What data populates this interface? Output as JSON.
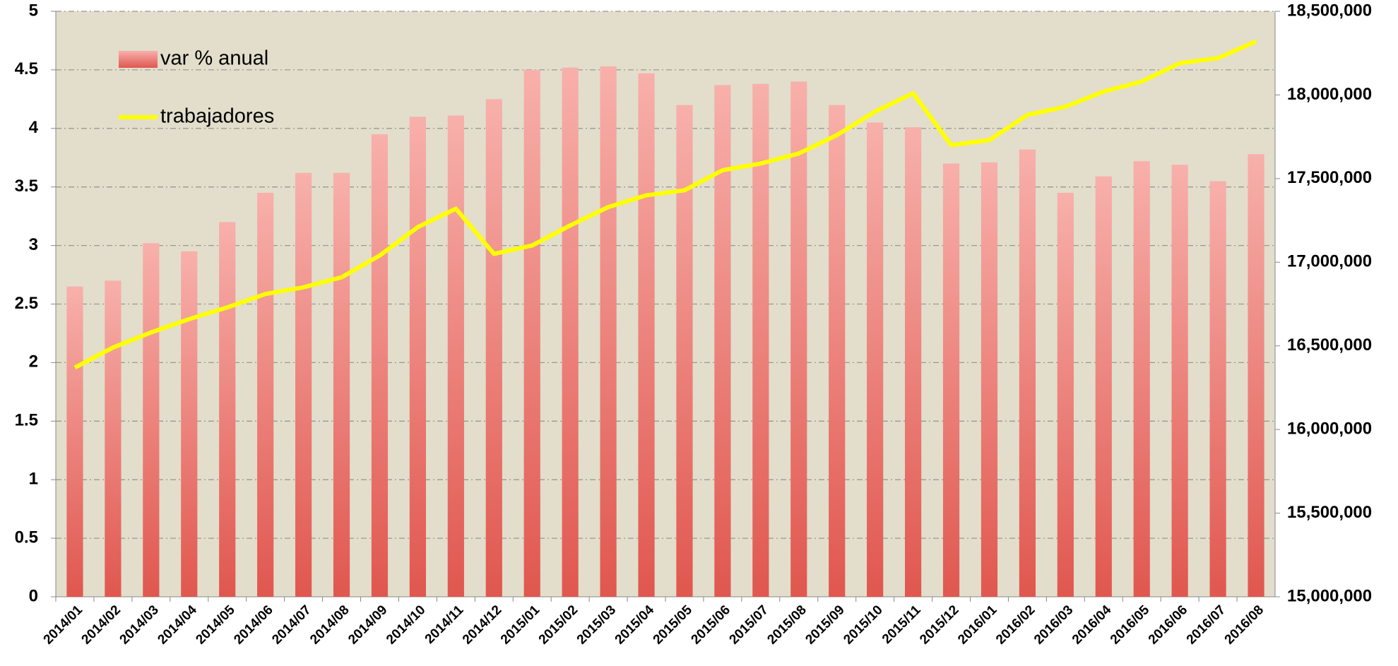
{
  "chart_data": {
    "type": "bar-line",
    "categories": [
      "2014/01",
      "2014/02",
      "2014/03",
      "2014/04",
      "2014/05",
      "2014/06",
      "2014/07",
      "2014/08",
      "2014/09",
      "2014/10",
      "2014/11",
      "2014/12",
      "2015/01",
      "2015/02",
      "2015/03",
      "2015/04",
      "2015/05",
      "2015/06",
      "2015/07",
      "2015/08",
      "2015/09",
      "2015/10",
      "2015/11",
      "2015/12",
      "2016/01",
      "2016/02",
      "2016/03",
      "2016/04",
      "2016/05",
      "2016/06",
      "2016/07",
      "2016/08"
    ],
    "series": [
      {
        "name": "var % anual",
        "type": "bar",
        "color": "#e0574f",
        "axis": "y",
        "values": [
          2.65,
          2.7,
          3.02,
          2.95,
          3.2,
          3.45,
          3.62,
          3.62,
          3.95,
          4.1,
          4.11,
          4.25,
          4.5,
          4.52,
          4.53,
          4.47,
          4.2,
          4.37,
          4.38,
          4.4,
          4.2,
          4.05,
          4.01,
          3.7,
          3.71,
          3.82,
          3.45,
          3.59,
          3.72,
          3.69,
          3.55,
          3.78
        ]
      },
      {
        "name": "trabajadores",
        "type": "line",
        "color": "#ffff00",
        "axis": "y2",
        "values": [
          16370000,
          16490000,
          16580000,
          16660000,
          16730000,
          16810000,
          16850000,
          16910000,
          17040000,
          17210000,
          17320000,
          17050000,
          17100000,
          17220000,
          17330000,
          17400000,
          17430000,
          17550000,
          17590000,
          17650000,
          17760000,
          17900000,
          18010000,
          17700000,
          17730000,
          17880000,
          17930000,
          18020000,
          18080000,
          18190000,
          18220000,
          18320000
        ]
      }
    ],
    "ylim": [
      0,
      5
    ],
    "yticks": [
      0,
      0.5,
      1,
      1.5,
      2,
      2.5,
      3,
      3.5,
      4,
      4.5,
      5
    ],
    "y2lim": [
      15000000,
      18500000
    ],
    "y2ticks": [
      {
        "value": 15000000,
        "label": "15,000,000"
      },
      {
        "value": 15500000,
        "label": "15,500,000"
      },
      {
        "value": 16000000,
        "label": "16,000,000"
      },
      {
        "value": 16500000,
        "label": "16,500,000"
      },
      {
        "value": 17000000,
        "label": "17,000,000"
      },
      {
        "value": 17500000,
        "label": "17,500,000"
      },
      {
        "value": 18000000,
        "label": "18,000,000"
      },
      {
        "value": 18500000,
        "label": "18,500,000"
      }
    ],
    "grid": true,
    "legend": "upper left"
  }
}
